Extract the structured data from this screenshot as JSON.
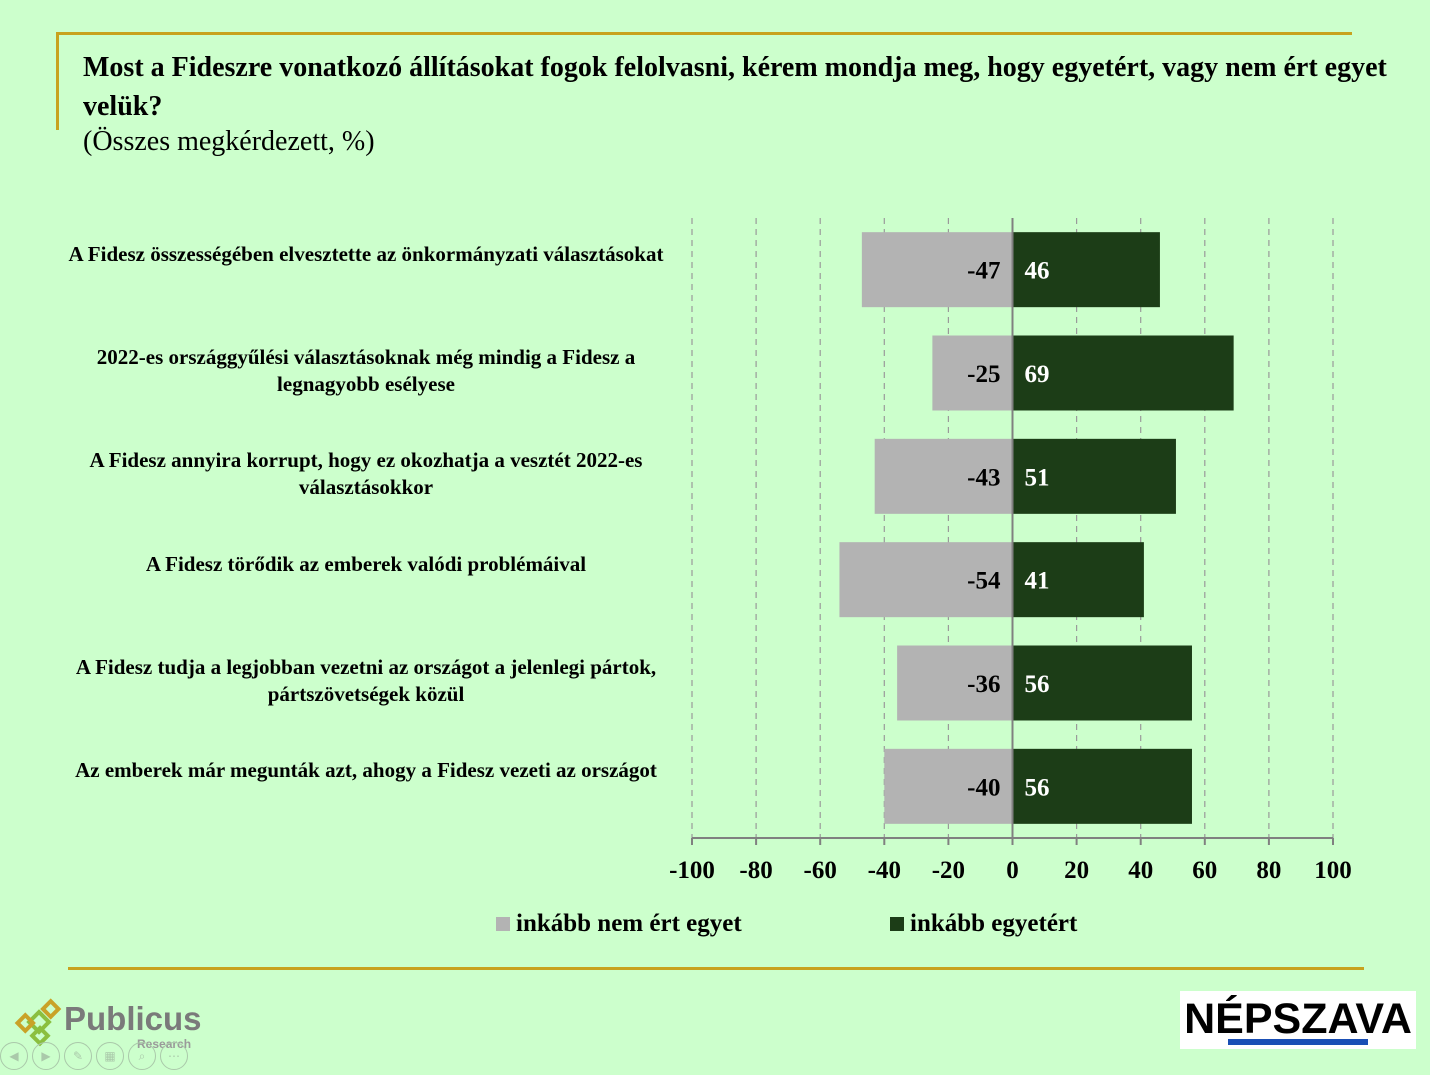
{
  "header": {
    "title": "Most a Fideszre vonatkozó állításokat fogok felolvasni, kérem mondja meg, hogy egyetért, vagy nem ért egyet velük?",
    "subtitle": "(Összes megkérdezett, %)"
  },
  "chart_data": {
    "type": "bar",
    "orientation": "horizontal",
    "stacked": "diverging",
    "categories": [
      "A Fidesz összességében elvesztette az önkormányzati választásokat",
      "2022-es országgyűlési választásoknak még mindig a Fidesz a legnagyobb esélyese",
      "A Fidesz annyira korrupt, hogy ez okozhatja a vesztét 2022-es választásokkor",
      "A Fidesz törődik az emberek valódi problémáival",
      "A Fidesz tudja a legjobban vezetni az országot a jelenlegi pártok, pártszövetségek közül",
      "Az emberek már megunták azt, ahogy a Fidesz vezeti az országot"
    ],
    "series": [
      {
        "name": "inkább nem ért egyet",
        "values": [
          -47,
          -25,
          -43,
          -54,
          -36,
          -40
        ],
        "color": "#b3b3b3"
      },
      {
        "name": "inkább egyetért",
        "values": [
          46,
          69,
          51,
          41,
          56,
          56
        ],
        "color": "#1c3d17"
      }
    ],
    "xlim": [
      -100,
      100
    ],
    "xticks": [
      -100,
      -80,
      -60,
      -40,
      -20,
      0,
      20,
      40,
      60,
      80,
      100
    ],
    "grid": "vertical-dashed",
    "legend": "bottom"
  },
  "logos": {
    "publicus": "Publicus",
    "publicus_sub": "Research",
    "nepszava": "NÉPSZAVA"
  },
  "colors": {
    "background": "#ccffcc",
    "frame": "#c8a21e"
  }
}
